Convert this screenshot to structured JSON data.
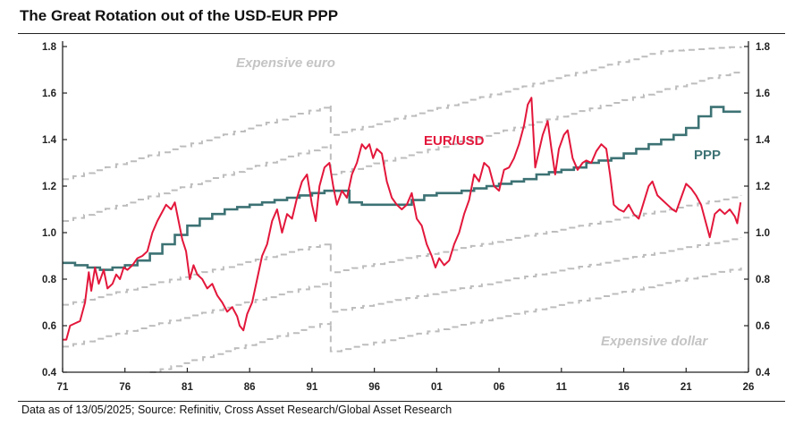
{
  "header": {
    "title": "The Great Rotation out of the USD-EUR PPP"
  },
  "footer": {
    "source": "Data as of 13/05/2025; Source: Refinitiv, Cross Asset Research/Global Asset Research"
  },
  "colors": {
    "eurusd": "#e3173b",
    "ppp": "#3d7274",
    "bands": "#bdbdbd",
    "annotation_gray": "#c4c4c4"
  },
  "chart_data": {
    "type": "line",
    "title": "The Great Rotation out of the USD-EUR PPP",
    "xlim": [
      1971,
      2026
    ],
    "ylim": [
      0.4,
      1.8
    ],
    "y_ticks": [
      "0.4",
      "0.6",
      "0.8",
      "1.0",
      "1.2",
      "1.4",
      "1.6",
      "1.8"
    ],
    "x_ticks": [
      "71",
      "76",
      "81",
      "86",
      "91",
      "96",
      "01",
      "06",
      "11",
      "16",
      "21",
      "26"
    ],
    "axes": {
      "left": true,
      "right": true,
      "grid": false
    },
    "annotations": {
      "eurusd_label": "EUR/USD",
      "ppp_label": "PPP",
      "expensive_euro": "Expensive euro",
      "expensive_dollar": "Expensive dollar"
    },
    "series": [
      {
        "name": "EUR/USD",
        "x": [
          1971.0,
          1971.3,
          1971.6,
          1972.0,
          1972.4,
          1972.8,
          1973.1,
          1973.3,
          1973.6,
          1973.9,
          1974.3,
          1974.6,
          1975.0,
          1975.3,
          1975.6,
          1975.9,
          1976.2,
          1976.6,
          1977.0,
          1977.4,
          1977.8,
          1978.2,
          1978.6,
          1979.0,
          1979.3,
          1979.7,
          1980.0,
          1980.3,
          1980.6,
          1980.9,
          1981.2,
          1981.5,
          1981.8,
          1982.2,
          1982.6,
          1983.0,
          1983.4,
          1983.8,
          1984.2,
          1984.6,
          1985.0,
          1985.2,
          1985.5,
          1985.8,
          1986.2,
          1986.6,
          1987.0,
          1987.4,
          1987.8,
          1988.2,
          1988.6,
          1989.0,
          1989.4,
          1989.8,
          1990.2,
          1990.6,
          1991.0,
          1991.3,
          1991.6,
          1992.0,
          1992.4,
          1992.7,
          1993.0,
          1993.4,
          1993.8,
          1994.2,
          1994.6,
          1995.0,
          1995.3,
          1995.6,
          1995.9,
          1996.2,
          1996.6,
          1997.0,
          1997.4,
          1997.8,
          1998.2,
          1998.6,
          1999.0,
          1999.4,
          1999.8,
          2000.2,
          2000.6,
          2000.9,
          2001.2,
          2001.6,
          2002.0,
          2002.4,
          2002.8,
          2003.2,
          2003.6,
          2004.0,
          2004.4,
          2004.8,
          2005.2,
          2005.6,
          2006.0,
          2006.4,
          2006.8,
          2007.2,
          2007.6,
          2008.0,
          2008.3,
          2008.6,
          2008.9,
          2009.2,
          2009.5,
          2009.9,
          2010.2,
          2010.5,
          2010.8,
          2011.2,
          2011.5,
          2011.9,
          2012.3,
          2012.7,
          2013.0,
          2013.4,
          2013.8,
          2014.2,
          2014.6,
          2014.9,
          2015.2,
          2015.6,
          2016.0,
          2016.4,
          2016.8,
          2017.2,
          2017.6,
          2018.0,
          2018.3,
          2018.7,
          2019.1,
          2019.5,
          2019.9,
          2020.2,
          2020.6,
          2021.0,
          2021.4,
          2021.8,
          2022.2,
          2022.6,
          2022.9,
          2023.3,
          2023.7,
          2024.1,
          2024.5,
          2024.9,
          2025.1,
          2025.37
        ],
        "y": [
          0.54,
          0.54,
          0.6,
          0.61,
          0.62,
          0.7,
          0.83,
          0.75,
          0.85,
          0.78,
          0.84,
          0.76,
          0.78,
          0.82,
          0.8,
          0.85,
          0.84,
          0.86,
          0.89,
          0.9,
          0.92,
          1.0,
          1.05,
          1.09,
          1.12,
          1.1,
          1.13,
          1.05,
          0.97,
          0.92,
          0.8,
          0.86,
          0.82,
          0.8,
          0.76,
          0.78,
          0.73,
          0.7,
          0.66,
          0.68,
          0.64,
          0.6,
          0.58,
          0.65,
          0.7,
          0.8,
          0.9,
          0.95,
          1.05,
          1.1,
          1.0,
          1.08,
          1.06,
          1.15,
          1.22,
          1.25,
          1.12,
          1.05,
          1.2,
          1.28,
          1.3,
          1.2,
          1.12,
          1.18,
          1.15,
          1.25,
          1.3,
          1.38,
          1.36,
          1.38,
          1.32,
          1.36,
          1.34,
          1.22,
          1.15,
          1.12,
          1.1,
          1.12,
          1.17,
          1.06,
          1.03,
          0.95,
          0.9,
          0.85,
          0.89,
          0.86,
          0.88,
          0.95,
          1.0,
          1.08,
          1.14,
          1.25,
          1.22,
          1.3,
          1.28,
          1.2,
          1.18,
          1.27,
          1.28,
          1.32,
          1.38,
          1.46,
          1.55,
          1.58,
          1.28,
          1.35,
          1.42,
          1.48,
          1.36,
          1.25,
          1.36,
          1.42,
          1.44,
          1.32,
          1.27,
          1.3,
          1.31,
          1.3,
          1.35,
          1.38,
          1.36,
          1.25,
          1.12,
          1.1,
          1.09,
          1.12,
          1.08,
          1.06,
          1.13,
          1.2,
          1.22,
          1.16,
          1.14,
          1.12,
          1.1,
          1.09,
          1.15,
          1.21,
          1.19,
          1.16,
          1.12,
          1.04,
          0.98,
          1.08,
          1.1,
          1.08,
          1.1,
          1.07,
          1.04,
          1.13
        ]
      },
      {
        "name": "PPP",
        "x": [
          1971,
          1972,
          1973,
          1974,
          1975,
          1976,
          1977,
          1978,
          1979,
          1980,
          1981,
          1982,
          1983,
          1984,
          1985,
          1986,
          1987,
          1988,
          1989,
          1990,
          1991,
          1992,
          1993,
          1994,
          1995,
          1996,
          1997,
          1998,
          1999,
          2000,
          2001,
          2002,
          2003,
          2004,
          2005,
          2006,
          2007,
          2008,
          2009,
          2010,
          2011,
          2012,
          2013,
          2014,
          2015,
          2016,
          2017,
          2018,
          2019,
          2020,
          2021,
          2022,
          2023,
          2024,
          2025.4
        ],
        "y": [
          0.87,
          0.86,
          0.85,
          0.84,
          0.85,
          0.86,
          0.88,
          0.91,
          0.95,
          0.99,
          1.03,
          1.06,
          1.08,
          1.1,
          1.11,
          1.12,
          1.13,
          1.14,
          1.15,
          1.16,
          1.17,
          1.18,
          1.18,
          1.13,
          1.12,
          1.12,
          1.12,
          1.12,
          1.14,
          1.16,
          1.17,
          1.17,
          1.18,
          1.19,
          1.2,
          1.21,
          1.22,
          1.23,
          1.25,
          1.26,
          1.27,
          1.28,
          1.3,
          1.31,
          1.32,
          1.34,
          1.36,
          1.38,
          1.4,
          1.42,
          1.45,
          1.5,
          1.54,
          1.52,
          1.52
        ]
      }
    ],
    "bands": [
      {
        "x": [
          1971,
          1992.5,
          1992.5,
          2019,
          2025.4
        ],
        "y": [
          1.23,
          1.55,
          1.42,
          1.78,
          1.8
        ]
      },
      {
        "x": [
          1971,
          1992.5,
          1992.5,
          2025.4
        ],
        "y": [
          1.05,
          1.38,
          1.25,
          1.7
        ]
      },
      {
        "x": [
          1971,
          1992.5,
          1992.5,
          2025.4
        ],
        "y": [
          0.69,
          0.96,
          0.83,
          1.16
        ]
      },
      {
        "x": [
          1971,
          1992.5,
          1992.5,
          2025.4
        ],
        "y": [
          0.51,
          0.79,
          0.66,
          0.98
        ]
      },
      {
        "x": [
          1978,
          1992.5,
          1992.5,
          2025.4
        ],
        "y": [
          0.4,
          0.62,
          0.49,
          0.85
        ]
      }
    ]
  }
}
